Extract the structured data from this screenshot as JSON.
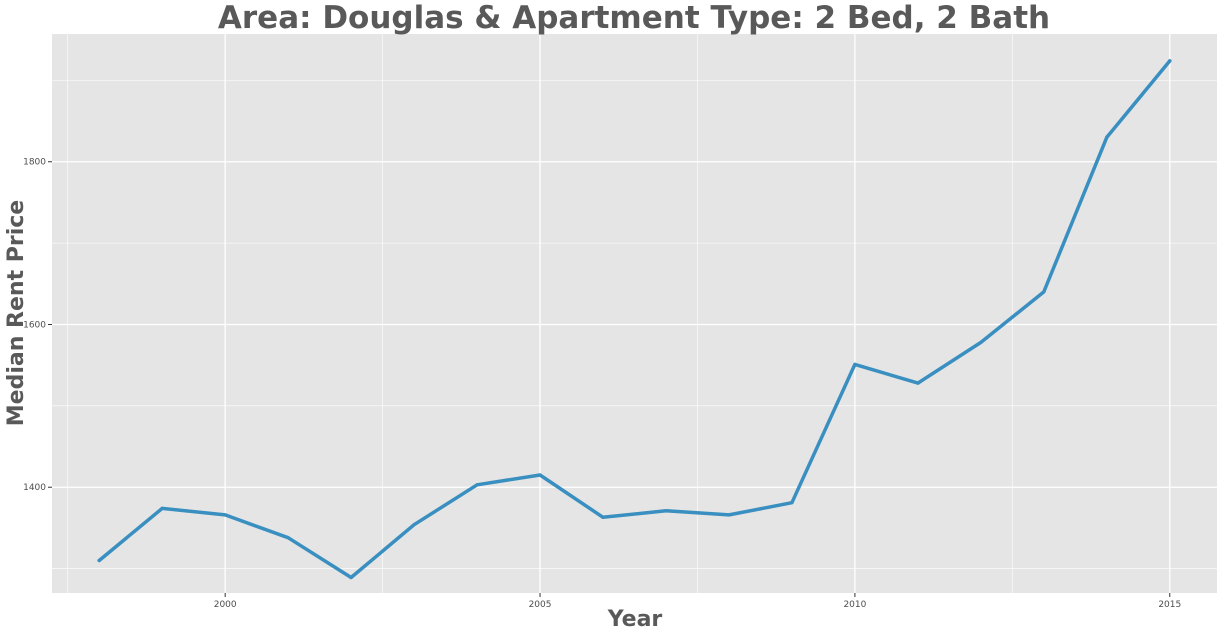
{
  "chart_data": {
    "type": "line",
    "title": "Area: Douglas & Apartment Type: 2 Bed, 2 Bath",
    "xlabel": "Year",
    "ylabel": "Median Rent Price",
    "x": [
      1998,
      1999,
      2000,
      2001,
      2002,
      2003,
      2004,
      2005,
      2006,
      2007,
      2008,
      2009,
      2010,
      2011,
      2012,
      2013,
      2014,
      2015
    ],
    "series": [
      {
        "values": [
          1310,
          1374,
          1366,
          1338,
          1289,
          1354,
          1403,
          1415,
          1363,
          1371,
          1366,
          1381,
          1551,
          1528,
          1578,
          1640,
          1830,
          1924
        ]
      }
    ],
    "xticks": [
      "2000",
      "2005",
      "2010",
      "2015"
    ],
    "yticks": [
      "1400",
      "1600",
      "1800"
    ],
    "xlim": [
      1997.25,
      2015.75
    ],
    "ylim": [
      1270,
      1957
    ],
    "grid": true,
    "legend": "none",
    "colors": {
      "line": "#3a8fc1",
      "panel": "#e5e5e5",
      "grid": "#ffffff",
      "text": "#595959"
    }
  }
}
